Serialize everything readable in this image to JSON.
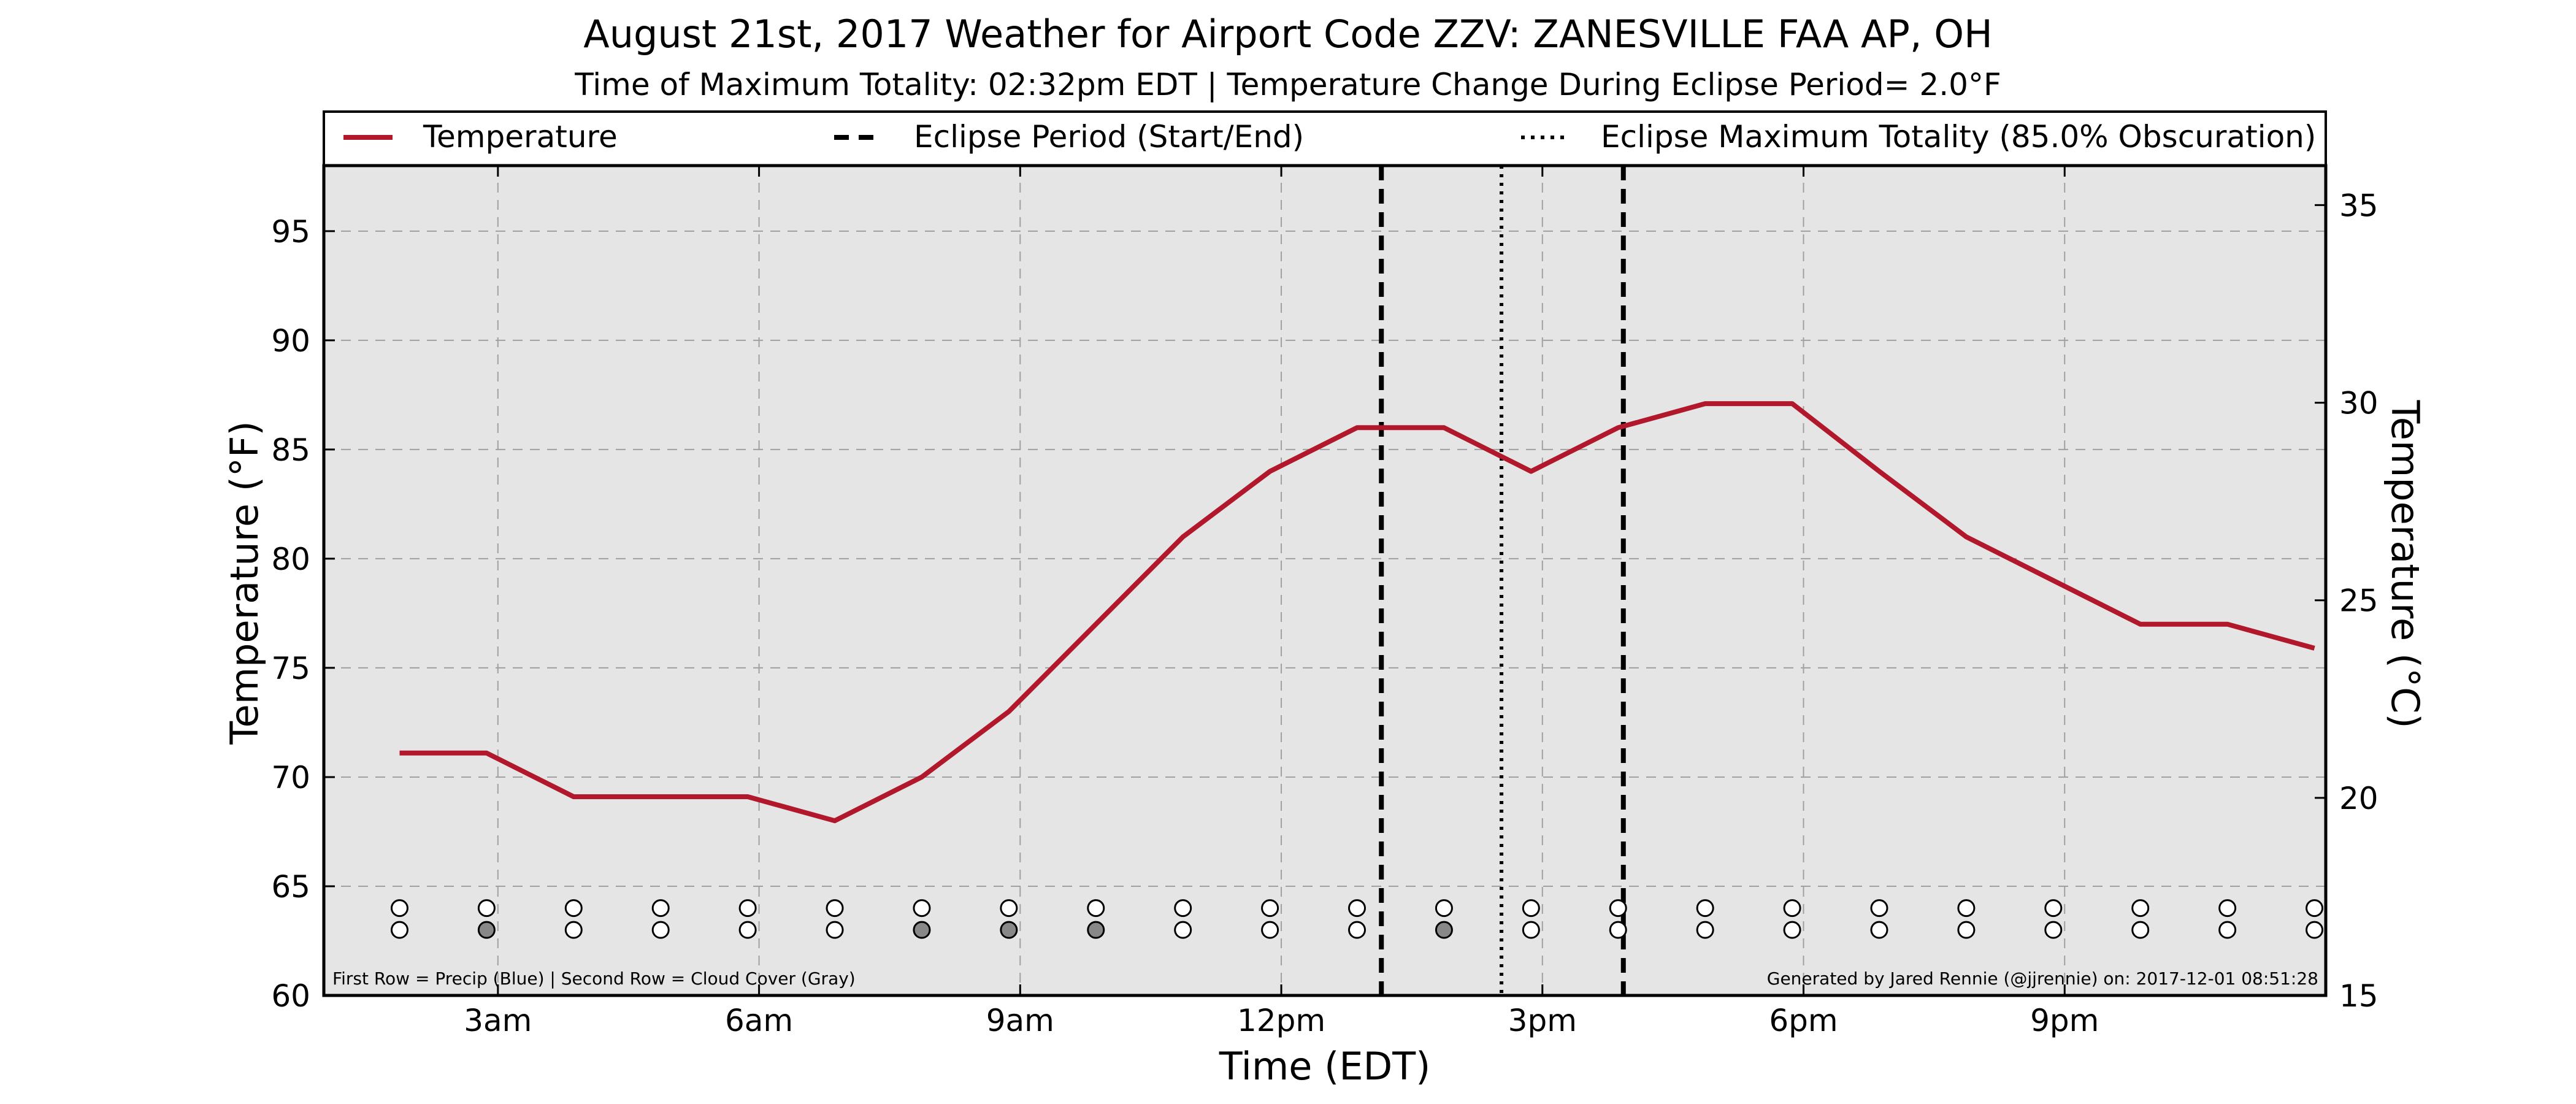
{
  "chart_data": {
    "type": "line",
    "title": "August 21st, 2017 Weather for Airport Code ZZV: ZANESVILLE FAA AP, OH",
    "subtitle": "Time of Maximum Totality: 02:32pm EDT | Temperature Change During Eclipse Period= 2.0°F",
    "xlabel": "Time (EDT)",
    "ylabel": "Temperature (°F)",
    "ylabel_right": "Temperature (°C)",
    "xlim": [
      1.0,
      24.0
    ],
    "ylim": [
      60,
      98
    ],
    "ylim_right": [
      15.0,
      36.0
    ],
    "grid": true,
    "x_ticks": [
      3,
      6,
      9,
      12,
      15,
      18,
      21
    ],
    "x_tick_labels": [
      "3am",
      "6am",
      "9am",
      "12pm",
      "3pm",
      "6pm",
      "9pm"
    ],
    "y_ticks": [
      60,
      65,
      70,
      75,
      80,
      85,
      90,
      95
    ],
    "y_tick_labels": [
      "60",
      "65",
      "70",
      "75",
      "80",
      "85",
      "90",
      "95"
    ],
    "y_ticks_right": [
      15,
      20,
      25,
      30,
      35
    ],
    "y_tick_labels_right": [
      "15",
      "20",
      "25",
      "30",
      "35"
    ],
    "legend_position": "top, above plot",
    "series": [
      {
        "name": "Temperature",
        "color": "#b2182b",
        "x": [
          1.87,
          2.87,
          3.87,
          4.87,
          5.87,
          6.87,
          7.87,
          8.87,
          9.87,
          10.87,
          11.87,
          12.87,
          13.87,
          14.87,
          15.87,
          16.87,
          17.87,
          18.87,
          19.87,
          20.87,
          21.87,
          22.87,
          23.87
        ],
        "y": [
          71.1,
          71.1,
          69.1,
          69.1,
          69.1,
          68.0,
          70.0,
          73.0,
          77.0,
          81.0,
          84.0,
          86.0,
          86.0,
          84.0,
          86.0,
          87.1,
          87.1,
          84.0,
          81.0,
          79.0,
          77.0,
          77.0,
          75.9
        ]
      }
    ],
    "eclipse_period": {
      "name": "Eclipse Period (Start/End)",
      "start": 13.15,
      "end": 15.93
    },
    "eclipse_max": {
      "name": "Eclipse Maximum Totality (85.0% Obscuration)",
      "x": 14.53
    },
    "markers": {
      "x": [
        1.87,
        2.87,
        3.87,
        4.87,
        5.87,
        6.87,
        7.87,
        8.87,
        9.87,
        10.87,
        11.87,
        12.87,
        13.87,
        14.87,
        15.87,
        16.87,
        17.87,
        18.87,
        19.87,
        20.87,
        21.87,
        22.87,
        23.87
      ],
      "precip_y": 64.0,
      "cloud_y": 63.0,
      "precip": [
        0,
        0,
        0,
        0,
        0,
        0,
        0,
        0,
        0,
        0,
        0,
        0,
        0,
        0,
        0,
        0,
        0,
        0,
        0,
        0,
        0,
        0,
        0
      ],
      "cloud": [
        0,
        1,
        0,
        0,
        0,
        0,
        1,
        1,
        1,
        0,
        0,
        0,
        1,
        0,
        0,
        0,
        0,
        0,
        0,
        0,
        0,
        0,
        0
      ],
      "colors": {
        "none": "#ffffff",
        "cloud": "#888888",
        "precip": "#3b6fd6"
      }
    },
    "footnote_left": "First Row = Precip (Blue) | Second Row = Cloud Cover (Gray)",
    "footnote_right": "Generated by Jared Rennie (@jjrennie) on: 2017-12-01 08:51:28",
    "colors": {
      "plot_background": "#e5e5e5",
      "grid": "#a0a0a0",
      "line": "#b2182b",
      "eclipse": "#000000"
    }
  }
}
